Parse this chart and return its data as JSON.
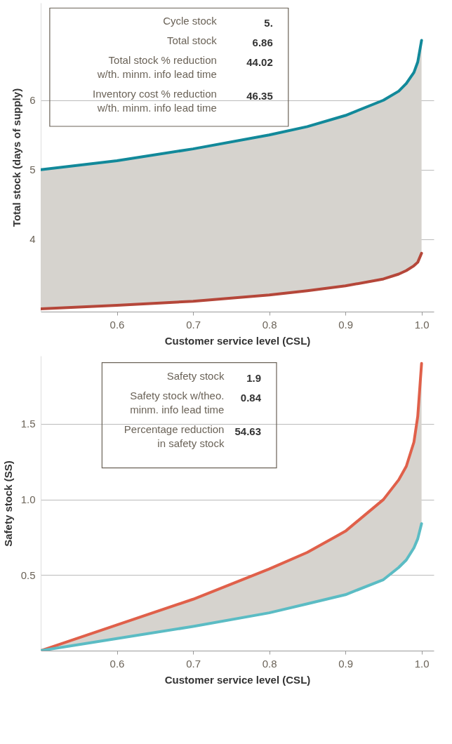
{
  "chart_data": [
    {
      "type": "line",
      "xlabel": "Customer service level (CSL)",
      "ylabel": "Total stock (days of supply)",
      "x": [
        0.5,
        0.6,
        0.7,
        0.8,
        0.85,
        0.9,
        0.95,
        0.97,
        0.98,
        0.99,
        0.995,
        1.0
      ],
      "series": [
        {
          "color": "#12899a",
          "values": [
            5.0,
            5.13,
            5.3,
            5.5,
            5.62,
            5.78,
            6.0,
            6.13,
            6.24,
            6.4,
            6.55,
            6.86
          ],
          "lower": [
            3.0,
            3.05,
            3.11,
            3.2,
            3.26,
            3.33,
            3.43,
            3.5,
            3.55,
            3.62,
            3.67,
            3.8
          ],
          "upper": [
            5.0,
            5.13,
            5.3,
            5.5,
            5.62,
            5.78,
            6.0,
            6.13,
            6.24,
            6.4,
            6.55,
            6.86
          ]
        },
        {
          "color": "#b5473a",
          "values": [
            3.0,
            3.05,
            3.11,
            3.2,
            3.26,
            3.33,
            3.43,
            3.5,
            3.55,
            3.62,
            3.67,
            3.8
          ]
        }
      ],
      "xlim": [
        0.5,
        1.016
      ],
      "ylim": [
        2.96,
        7.4
      ],
      "xticks": [
        0.6,
        0.7,
        0.8,
        0.9,
        {
          "value": 1.0,
          "label": "1.0"
        }
      ],
      "yticks": [
        4,
        5,
        6
      ],
      "grid": "y",
      "line_style": "solid",
      "marker": "none",
      "annotations": [
        "Cycle stock",
        "5.",
        "Total stock",
        "6.86",
        "Total stock % reduction\nw/th. minm. info lead time",
        "44.02",
        "Inventory cost % reduction\nw/th. minm. info lead time",
        "46.35"
      ]
    },
    {
      "type": "line",
      "xlabel": "Customer service level (CSL)",
      "ylabel": "Safety stock (SS)",
      "x": [
        0.5,
        0.6,
        0.7,
        0.8,
        0.85,
        0.9,
        0.95,
        0.97,
        0.98,
        0.99,
        0.995,
        1.0
      ],
      "series": [
        {
          "color": "#e0604a",
          "values": [
            0.0,
            0.17,
            0.34,
            0.54,
            0.65,
            0.79,
            1.0,
            1.13,
            1.22,
            1.38,
            1.55,
            1.9
          ],
          "lower": [
            0.0,
            0.08,
            0.16,
            0.25,
            0.31,
            0.37,
            0.47,
            0.55,
            0.6,
            0.68,
            0.74,
            0.84
          ],
          "upper": [
            0.0,
            0.17,
            0.34,
            0.54,
            0.65,
            0.79,
            1.0,
            1.13,
            1.22,
            1.38,
            1.55,
            1.9
          ]
        },
        {
          "color": "#5bbcc4",
          "values": [
            0.0,
            0.08,
            0.16,
            0.25,
            0.31,
            0.37,
            0.47,
            0.55,
            0.6,
            0.68,
            0.74,
            0.84
          ]
        }
      ],
      "xlim": [
        0.5,
        1.016
      ],
      "ylim": [
        0,
        1.95
      ],
      "xticks": [
        0.6,
        0.7,
        0.8,
        0.9,
        {
          "value": 1.0,
          "label": "1.0"
        }
      ],
      "yticks": [
        {
          "value": 0.5,
          "label": "0.5"
        },
        {
          "value": 1.0,
          "label": "1.0"
        },
        {
          "value": 1.5,
          "label": "1.5"
        }
      ],
      "grid": "y",
      "line_style": "solid",
      "marker": "none",
      "annotations": [
        "Safety stock",
        "1.9",
        "Safety stock w/theo.\nminm. info lead time",
        "0.84",
        "Percentage reduction\nin safety stock",
        "54.63"
      ]
    }
  ]
}
